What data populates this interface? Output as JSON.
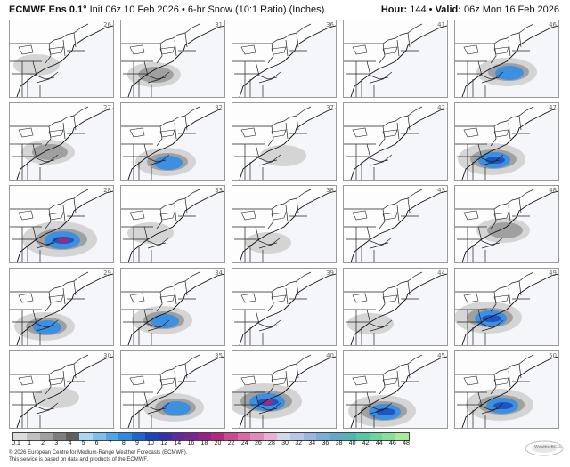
{
  "header": {
    "model": "ECMWF Ens 0.1°",
    "run_info": "Init 06z 10 Feb 2026 • 6-hr Snow (10:1 Ratio) (Inches)",
    "hour_label": "Hour:",
    "hour_value": "144",
    "valid_label": "Valid:",
    "valid_value": "06z Mon 16 Feb 2026"
  },
  "members": [
    [
      "26",
      "31",
      "36",
      "41",
      "46"
    ],
    [
      "27",
      "32",
      "37",
      "42",
      "47"
    ],
    [
      "28",
      "33",
      "38",
      "43",
      "48"
    ],
    [
      "29",
      "34",
      "39",
      "44",
      "49"
    ],
    [
      "30",
      "35",
      "40",
      "45",
      "50"
    ]
  ],
  "snow_intensity": [
    [
      1,
      2,
      0,
      0,
      3
    ],
    [
      2,
      3,
      1,
      0,
      4
    ],
    [
      5,
      1,
      1,
      0,
      2
    ],
    [
      3,
      3,
      0,
      1,
      4
    ],
    [
      1,
      3,
      5,
      4,
      4
    ]
  ],
  "scale": {
    "labels": [
      "0.1",
      "1",
      "2",
      "3",
      "4",
      "5",
      "6",
      "7",
      "8",
      "9",
      "10",
      "12",
      "14",
      "16",
      "18",
      "20",
      "22",
      "24",
      "26",
      "28",
      "30",
      "32",
      "34",
      "36",
      "38",
      "40",
      "42",
      "44",
      "46",
      "48"
    ],
    "colors": [
      "#dcdcdc",
      "#c0c0c0",
      "#a0a0a0",
      "#7e7e7e",
      "#5f5f5f",
      "#a9d6f5",
      "#7cc0ef",
      "#4fa6e6",
      "#2f88dc",
      "#1e66cc",
      "#1a46b8",
      "#3b2fa8",
      "#5e2a9e",
      "#7c2592",
      "#962485",
      "#b22a7e",
      "#c94a90",
      "#da6aa6",
      "#e38abd",
      "#ebaed4",
      "#d2d8ea",
      "#b6c8e6",
      "#98b8e2",
      "#7aaed8",
      "#63a8c8",
      "#54b4b4",
      "#5ac6a8",
      "#6ad69e",
      "#86e098",
      "#a6ea9a"
    ]
  },
  "footer": {
    "line1": "© 2026 European Centre for Medium-Range Weather Forecasts (ECMWF).",
    "line2": "This service is based on data and products of the ECMWF."
  },
  "logo_text": "WeatherBELL"
}
